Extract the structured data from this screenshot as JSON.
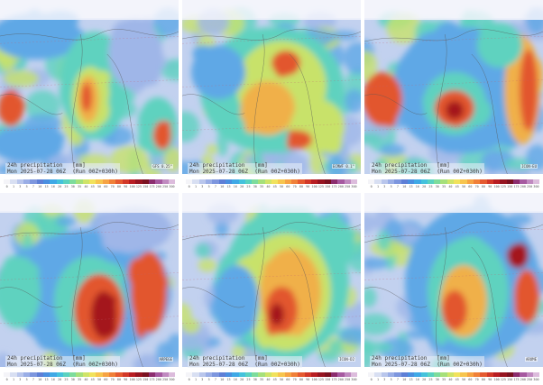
{
  "panels": [
    {
      "line1": "24h precipitation   [mm]",
      "line2": "Mon 2025-07-28 06Z  (Run 00Z+030h)",
      "model": "GFS 0.25°"
    },
    {
      "line1": "24h precipitation   [mm]",
      "line2": "Mon 2025-07-28 06Z  (Run 00Z+030h)",
      "model": "ECMWF 0.1°"
    },
    {
      "line1": "24h precipitation   [mm]",
      "line2": "Mon 2025-07-28 06Z  (Run 00Z+030h)",
      "model": "ICON-EU"
    },
    {
      "line1": "24h precipitation   [mm]",
      "line2": "Mon 2025-07-28 06Z  (Run 00Z+030h)",
      "model": "ARPEGE"
    },
    {
      "line1": "24h precipitation   [mm]",
      "line2": "Mon 2025-07-28 06Z  (Run 00Z+030h)",
      "model": "ICON-D2"
    },
    {
      "line1": "24h precipitation   [mm]",
      "line2": "Mon 2025-07-28 06Z  (Run 00Z+030h)",
      "model": "AROME"
    }
  ],
  "scale": {
    "ticks": [
      "0",
      "1",
      "3",
      "5",
      "7",
      "10",
      "13",
      "16",
      "20",
      "25",
      "30",
      "35",
      "40",
      "45",
      "50",
      "60",
      "70",
      "80",
      "90",
      "100",
      "125",
      "150",
      "175",
      "200",
      "250",
      "300"
    ],
    "colors": [
      "#f4f4f8",
      "#d8dff2",
      "#b9c6ec",
      "#9aaee6",
      "#7d96de",
      "#5e7fd6",
      "#4a8fe0",
      "#3fa9e6",
      "#44c2dc",
      "#5ad2c0",
      "#7ddc9c",
      "#a6e07a",
      "#cfe468",
      "#f1e25c",
      "#f7c54e",
      "#f6a343",
      "#f08038",
      "#e55a30",
      "#d23828",
      "#b81d22",
      "#961420",
      "#7a1120",
      "#8c2d6e",
      "#a65aa0",
      "#c08ac0",
      "#dcbcdc"
    ]
  },
  "intensity_colors": {
    "none": "#eef1f8",
    "light": "#9fb6e8",
    "low": "#5fa8e6",
    "moderate": "#5ed2bf",
    "mid": "#c8e26a",
    "high": "#f0b04a",
    "heavy": "#e2562e",
    "extreme": "#a4161f"
  }
}
